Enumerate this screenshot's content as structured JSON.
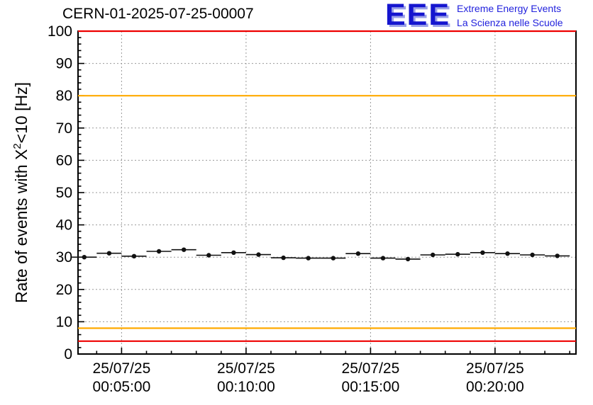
{
  "header": {
    "title": "CERN-01-2025-07-25-00007"
  },
  "logo": {
    "text": "EEE",
    "line1": "Extreme Energy Events",
    "line2": "La Scienza nelle Scuole",
    "color": "#2222dd"
  },
  "ylabel": {
    "prefix": "Rate of events with X",
    "sup": "2",
    "suffix": "<10 [Hz]"
  },
  "chart_data": {
    "type": "scatter",
    "title": "CERN-01-2025-07-25-00007",
    "ylabel": "Rate of events with X^2<10 [Hz]",
    "xlabel": "",
    "ylim": [
      0,
      100
    ],
    "yticks": [
      0,
      10,
      20,
      30,
      40,
      50,
      60,
      70,
      80,
      90,
      100
    ],
    "y_minor_step": 2,
    "x_domain_seconds": [
      195,
      1395
    ],
    "x_minor_step_seconds": 60,
    "xticks": [
      {
        "t": 300,
        "date": "25/07/25",
        "time": "00:05:00"
      },
      {
        "t": 600,
        "date": "25/07/25",
        "time": "00:10:00"
      },
      {
        "t": 900,
        "date": "25/07/25",
        "time": "00:15:00"
      },
      {
        "t": 1200,
        "date": "25/07/25",
        "time": "00:20:00"
      }
    ],
    "grid": true,
    "legend": "none",
    "marker": {
      "shape": "circle",
      "color": "#111111",
      "radius": 3.2
    },
    "xerr_seconds": 30,
    "yerr_hz": 0.6,
    "thresholds": [
      {
        "y": 100,
        "color": "#ee0000",
        "name": "alarm-high"
      },
      {
        "y": 80,
        "color": "#ffaa00",
        "name": "warning-high"
      },
      {
        "y": 8,
        "color": "#ffaa00",
        "name": "warning-low"
      },
      {
        "y": 4,
        "color": "#ee0000",
        "name": "alarm-low"
      }
    ],
    "points": [
      [
        210,
        30.0
      ],
      [
        270,
        31.2
      ],
      [
        330,
        30.3
      ],
      [
        390,
        31.8
      ],
      [
        450,
        32.3
      ],
      [
        510,
        30.6
      ],
      [
        570,
        31.4
      ],
      [
        630,
        30.8
      ],
      [
        690,
        29.8
      ],
      [
        750,
        29.7
      ],
      [
        810,
        29.7
      ],
      [
        870,
        31.1
      ],
      [
        930,
        29.7
      ],
      [
        990,
        29.4
      ],
      [
        1050,
        30.7
      ],
      [
        1110,
        30.9
      ],
      [
        1170,
        31.4
      ],
      [
        1230,
        31.1
      ],
      [
        1290,
        30.7
      ],
      [
        1350,
        30.4
      ]
    ]
  }
}
